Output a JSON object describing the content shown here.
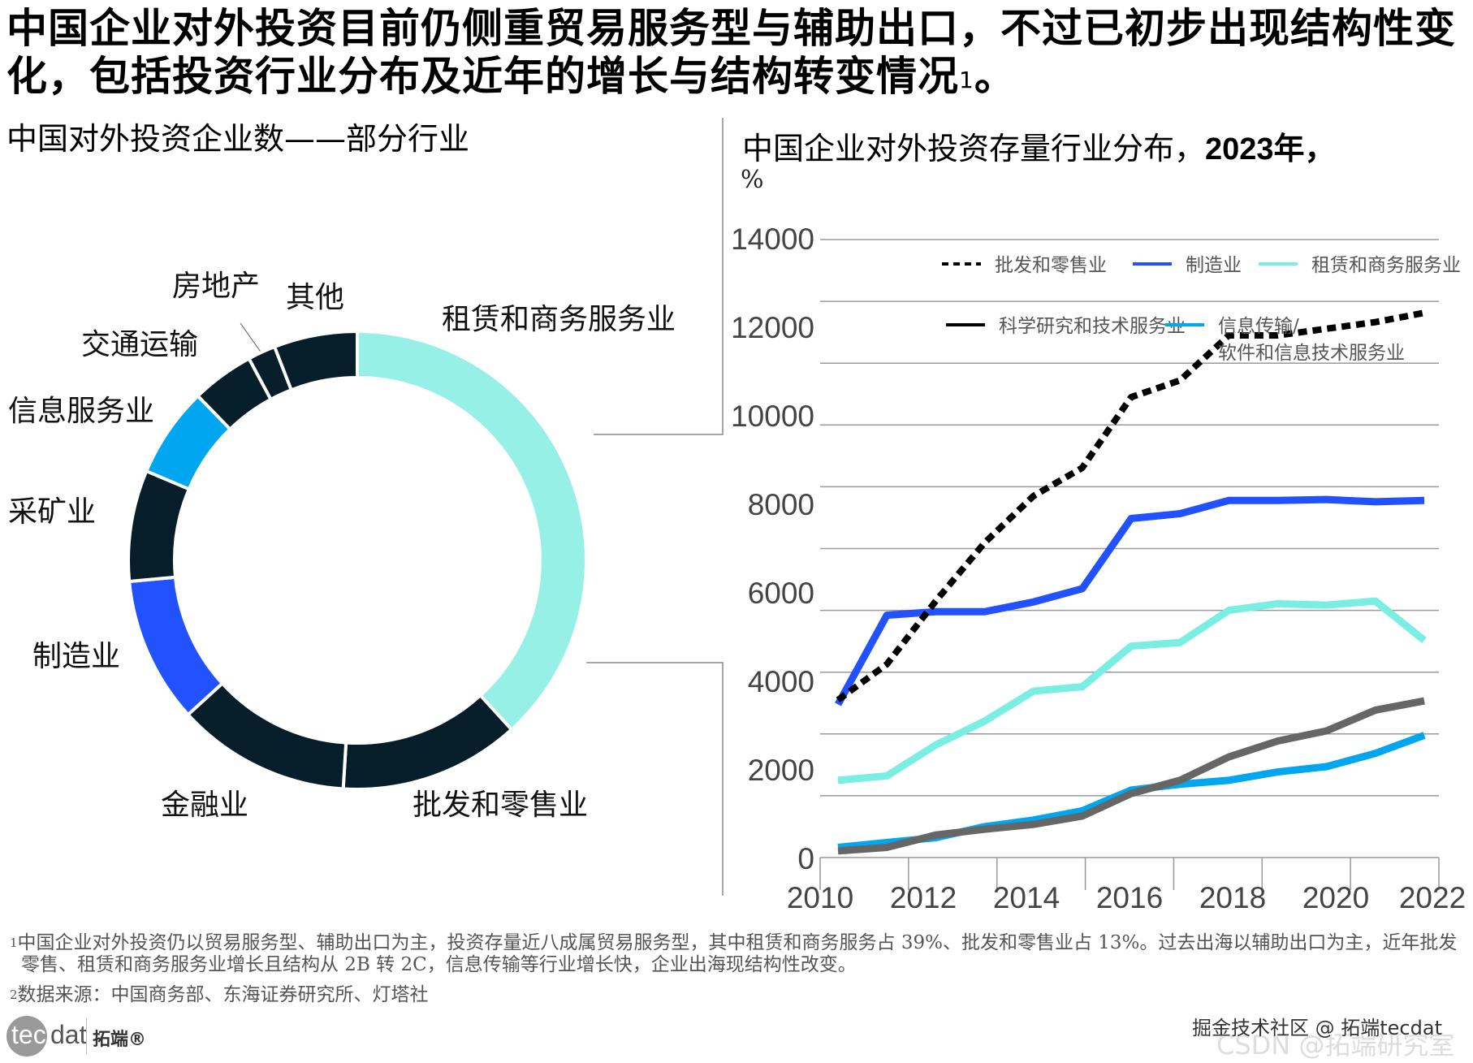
{
  "headline": {
    "text": "中国企业对外投资目前仍侧重贸易服务型与辅助出口，不过已初步出现结构性变化，包括投资行业分布及近年的增长与结构转变情况",
    "footnote_ref": "1",
    "end": "。"
  },
  "left_panel": {
    "title": "中国对外投资企业数——部分行业"
  },
  "right_panel": {
    "title_main": "中国企业对外投资存量行业分布，",
    "title_year": "2023年，",
    "unit": "%"
  },
  "colors": {
    "navy": "#061d2a",
    "teal": "#96f0e6",
    "royal_blue": "#2251ff",
    "sky_blue": "#00a6ef",
    "gray_line": "#666666",
    "grid": "#9a9a9a"
  },
  "chart_data": [
    {
      "type": "pie",
      "variant": "donut",
      "title": "中国对外投资企业数——部分行业",
      "start": "top, clockwise",
      "slices": [
        {
          "label": "租赁和商务服务业",
          "value": 39,
          "color": "#96f0e6"
        },
        {
          "label": "批发和零售业",
          "value": 13,
          "color": "#061d2a"
        },
        {
          "label": "金融业",
          "value": 12.5,
          "color": "#061d2a"
        },
        {
          "label": "制造业",
          "value": 10.5,
          "color": "#2251ff"
        },
        {
          "label": "采矿业",
          "value": 8,
          "color": "#061d2a"
        },
        {
          "label": "信息服务业",
          "value": 6.5,
          "color": "#00a6ef"
        },
        {
          "label": "交通运输",
          "value": 4.5,
          "color": "#061d2a"
        },
        {
          "label": "房地产",
          "value": 2,
          "color": "#061d2a"
        },
        {
          "label": "其他",
          "value": 6,
          "color": "#061d2a"
        }
      ]
    },
    {
      "type": "line",
      "title": "中国企业对外投资存量行业分布，2023年，%",
      "xlabel": "",
      "ylabel": "",
      "x": [
        2010,
        2011,
        2012,
        2013,
        2014,
        2015,
        2016,
        2017,
        2018,
        2019,
        2020,
        2021,
        2022
      ],
      "xticks": [
        "2010",
        "2012",
        "2014",
        "2016",
        "2018",
        "2020",
        "2022"
      ],
      "yticks": [
        "0",
        "2000",
        "4000",
        "6000",
        "8000",
        "10000",
        "12000",
        "14000"
      ],
      "ylim": [
        0,
        14000
      ],
      "grid_step": 1400,
      "grid": true,
      "legend_position": "top-right",
      "series": [
        {
          "name": "批发和零售业",
          "style": "dotted",
          "color": "#000000",
          "values": [
            3570,
            4380,
            5810,
            7130,
            8190,
            8830,
            10430,
            10810,
            11830,
            11830,
            11980,
            12130,
            12340
          ]
        },
        {
          "name": "制造业",
          "style": "solid",
          "color": "#2251ff",
          "values": [
            3470,
            5490,
            5570,
            5570,
            5790,
            6090,
            7680,
            7790,
            8090,
            8090,
            8110,
            8060,
            8090
          ]
        },
        {
          "name": "租赁和商务服务业",
          "style": "solid",
          "color": "#7aeee2",
          "values": [
            1750,
            1850,
            2550,
            3090,
            3770,
            3870,
            4790,
            4870,
            5600,
            5750,
            5720,
            5810,
            4920
          ]
        },
        {
          "name": "科学研究和技术服务业",
          "style": "solid",
          "color": "#666666",
          "legend_color": "#000000",
          "values": [
            150,
            230,
            510,
            640,
            750,
            940,
            1450,
            1750,
            2280,
            2640,
            2870,
            3340,
            3550
          ]
        },
        {
          "name": "信息传输/软件和信息技术服务业",
          "legend_lines": [
            "信息传输/",
            "软件和信息技术服务业"
          ],
          "style": "solid",
          "color": "#00a6ef",
          "values": [
            230,
            340,
            450,
            700,
            850,
            1060,
            1530,
            1660,
            1750,
            1940,
            2060,
            2360,
            2770
          ]
        }
      ]
    }
  ],
  "footnotes": [
    {
      "ref": "1",
      "text": "中国企业对外投资仍以贸易服务型、辅助出口为主，投资存量近八成属贸易服务型，其中租赁和商务服务占 39%、批发和零售业占 13%。过去出海以辅助出口为主，近年批发零售、租赁和商务服务业增长且结构从 2B 转 2C，信息传输等行业增长快，企业出海现结构性改变。"
    },
    {
      "ref": "2",
      "text": "数据来源：中国商务部、东海证券研究所、灯塔社"
    }
  ],
  "logo": {
    "tec": "tec",
    "dat": "dat",
    "cn": "拓端®"
  },
  "watermark": {
    "primary": "掘金技术社区 @ 拓端tecdat",
    "secondary": "CSDN @拓端研究室"
  }
}
